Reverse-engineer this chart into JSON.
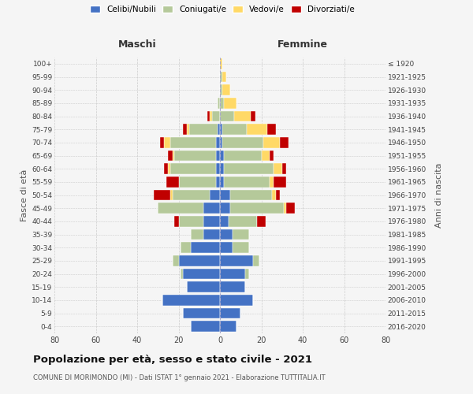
{
  "age_groups": [
    "0-4",
    "5-9",
    "10-14",
    "15-19",
    "20-24",
    "25-29",
    "30-34",
    "35-39",
    "40-44",
    "45-49",
    "50-54",
    "55-59",
    "60-64",
    "65-69",
    "70-74",
    "75-79",
    "80-84",
    "85-89",
    "90-94",
    "95-99",
    "100+"
  ],
  "birth_years": [
    "2016-2020",
    "2011-2015",
    "2006-2010",
    "2001-2005",
    "1996-2000",
    "1991-1995",
    "1986-1990",
    "1981-1985",
    "1976-1980",
    "1971-1975",
    "1966-1970",
    "1961-1965",
    "1956-1960",
    "1951-1955",
    "1946-1950",
    "1941-1945",
    "1936-1940",
    "1931-1935",
    "1926-1930",
    "1921-1925",
    "≤ 1920"
  ],
  "males": {
    "celibi": [
      14,
      18,
      28,
      16,
      18,
      20,
      14,
      8,
      8,
      8,
      5,
      2,
      2,
      2,
      2,
      1,
      0,
      0,
      0,
      0,
      0
    ],
    "coniugati": [
      0,
      0,
      0,
      0,
      1,
      3,
      5,
      6,
      12,
      22,
      18,
      18,
      22,
      20,
      22,
      14,
      4,
      1,
      0,
      0,
      0
    ],
    "vedovi": [
      0,
      0,
      0,
      0,
      0,
      0,
      0,
      0,
      0,
      0,
      1,
      0,
      1,
      1,
      3,
      1,
      1,
      0,
      0,
      0,
      0
    ],
    "divorziati": [
      0,
      0,
      0,
      0,
      0,
      0,
      0,
      0,
      2,
      0,
      8,
      6,
      2,
      2,
      2,
      2,
      1,
      0,
      0,
      0,
      0
    ]
  },
  "females": {
    "nubili": [
      8,
      10,
      16,
      12,
      12,
      16,
      6,
      6,
      4,
      5,
      5,
      2,
      2,
      2,
      1,
      1,
      0,
      0,
      0,
      0,
      0
    ],
    "coniugate": [
      0,
      0,
      0,
      0,
      2,
      3,
      8,
      8,
      14,
      26,
      20,
      22,
      24,
      18,
      20,
      12,
      7,
      2,
      1,
      1,
      0
    ],
    "vedove": [
      0,
      0,
      0,
      0,
      0,
      0,
      0,
      0,
      0,
      1,
      2,
      2,
      4,
      4,
      8,
      10,
      8,
      6,
      4,
      2,
      1
    ],
    "divorziate": [
      0,
      0,
      0,
      0,
      0,
      0,
      0,
      0,
      4,
      4,
      2,
      6,
      2,
      2,
      4,
      4,
      2,
      0,
      0,
      0,
      0
    ]
  },
  "colors": {
    "celibi_nubili": "#4472c4",
    "coniugati": "#b5c99a",
    "vedovi": "#ffd966",
    "divorziati": "#c00000"
  },
  "xlim": 80,
  "title": "Popolazione per età, sesso e stato civile - 2021",
  "subtitle": "COMUNE DI MORIMONDO (MI) - Dati ISTAT 1° gennaio 2021 - Elaborazione TUTTITALIA.IT",
  "ylabel_left": "Fasce di età",
  "ylabel_right": "Anni di nascita",
  "xlabel_left": "Maschi",
  "xlabel_right": "Femmine",
  "background_color": "#f5f5f5",
  "grid_color": "#cccccc"
}
